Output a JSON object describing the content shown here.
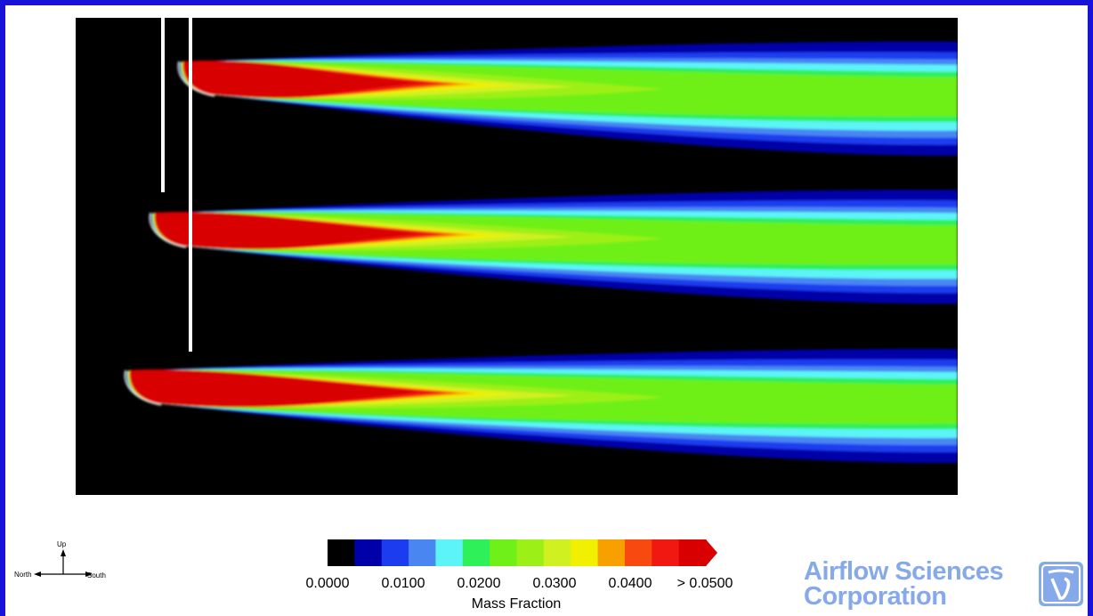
{
  "compass": {
    "up": "Up",
    "left": "North",
    "right": "South"
  },
  "colorbar": {
    "title": "Mass Fraction",
    "colors": [
      "#000000",
      "#0000a8",
      "#1c3cf0",
      "#4a86f2",
      "#5cf4f6",
      "#2ef058",
      "#6ef018",
      "#9cf018",
      "#d0f020",
      "#f0f000",
      "#f8a000",
      "#f84a10",
      "#f01810",
      "#d80000"
    ],
    "tick_labels": [
      "0.0000",
      "0.0100",
      "0.0200",
      "0.0300",
      "0.0400",
      "> 0.0500"
    ]
  },
  "logo": {
    "line1": "Airflow Sciences",
    "line2": "Corporation",
    "accent": "#86a9ea",
    "mark_icon": "asc-logo-mark-icon"
  },
  "plot": {
    "background": "#000000",
    "frame_color": "#1a12d8"
  }
}
